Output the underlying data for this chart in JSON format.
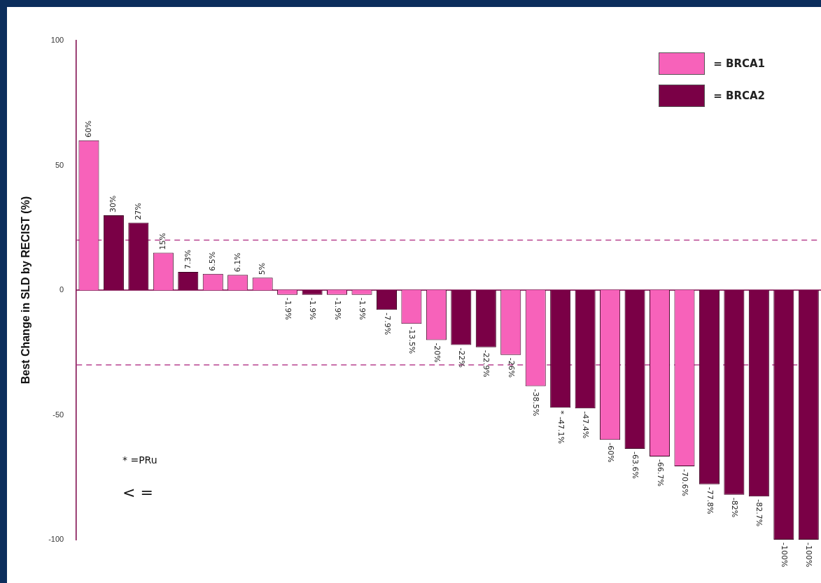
{
  "chart_data": {
    "type": "bar",
    "ylabel": "Best Change in SLD by RECIST (%)",
    "categories": [
      null,
      null,
      null,
      null,
      null,
      null,
      null,
      null,
      null,
      null,
      null,
      null,
      null,
      null,
      null,
      null,
      null,
      null,
      null,
      null,
      null,
      null,
      null,
      null,
      null,
      null,
      null,
      null,
      null,
      null
    ],
    "series": [
      {
        "name": "= BRCA1",
        "color": "#f762ba",
        "values": [
          60,
          null,
          null,
          15,
          null,
          6.5,
          6.1,
          5,
          -1.9,
          null,
          -1.9,
          -1.9,
          null,
          -13.5,
          -20,
          null,
          null,
          -26,
          -38.5,
          null,
          null,
          -60,
          null,
          -66.7,
          -70.6,
          null,
          null,
          null,
          null,
          null
        ],
        "value_labels": [
          "60%",
          null,
          null,
          "15%",
          null,
          "6.5%",
          "6.1%",
          "5%",
          "-1.9%",
          null,
          "-1.9%",
          "-1.9%",
          null,
          "-13.5%",
          "-20%",
          null,
          null,
          "-26%",
          "-38.5%",
          null,
          null,
          "-60%",
          null,
          "-66.7%",
          "-70.6%",
          null,
          null,
          null,
          null,
          null
        ]
      },
      {
        "name": "= BRCA2",
        "color": "#7a0046",
        "values": [
          null,
          30,
          27,
          null,
          7.3,
          null,
          null,
          null,
          null,
          -1.9,
          null,
          null,
          -7.9,
          null,
          null,
          -22,
          -22.9,
          null,
          null,
          -47.1,
          -47.4,
          null,
          -63.6,
          null,
          null,
          -77.8,
          -82,
          -82.7,
          -100,
          -100
        ],
        "value_labels": [
          null,
          "30%",
          "27%",
          null,
          "7.3%",
          null,
          null,
          null,
          null,
          "-1.9%",
          null,
          null,
          "-7.9%",
          null,
          null,
          "-22%",
          "-22.9%",
          null,
          null,
          "* -47.1%",
          "-47.4%",
          null,
          "-63.6%",
          null,
          null,
          "-77.8%",
          "-82%",
          "-82.7%",
          "-100%",
          "-100%"
        ]
      }
    ],
    "ylim": [
      -100,
      100
    ],
    "yticks": [
      -100,
      -50,
      0,
      50,
      100
    ],
    "tick_labels": "y",
    "legend": "top right",
    "ref_lines": [
      {
        "axis": "y",
        "value": 0,
        "color": "#7a0046",
        "line_style": "solid"
      },
      {
        "axis": "y",
        "value": 20,
        "color": "#b8428f",
        "line_style": "dashed"
      },
      {
        "axis": "y",
        "value": -30,
        "color": "#b8428f",
        "line_style": "dashed"
      }
    ],
    "annotations": [
      "* =PRu",
      "< ="
    ]
  }
}
